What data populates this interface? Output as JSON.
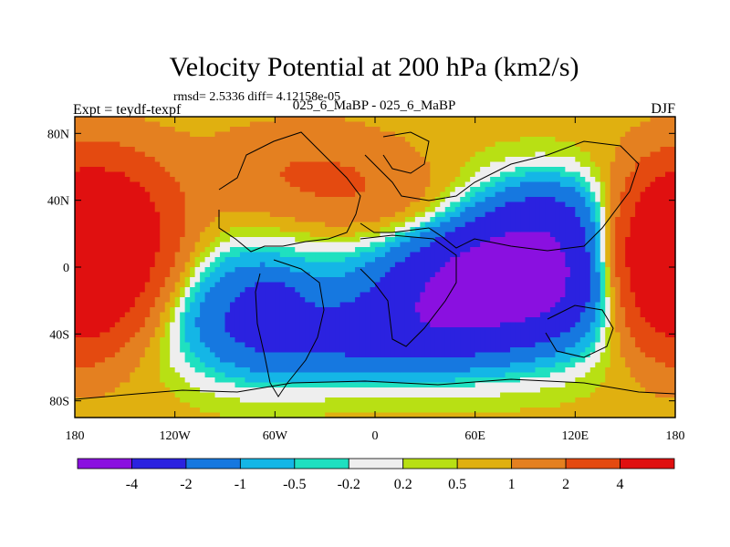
{
  "chart_data": {
    "type": "heatmap",
    "title": "Velocity Potential at 200 hPa (km2/s)",
    "stats_line": "rmsd= 2.5336 diff= 4.12158e-05",
    "left_label": "Expt = teydf-texpf",
    "center_label": "025_6_MaBP - 025_6_MaBP",
    "right_label": "DJF",
    "units": "km2/s",
    "xlim": [
      -180,
      180
    ],
    "ylim": [
      -90,
      90
    ],
    "x_ticks": [
      {
        "value": -180,
        "label": "180"
      },
      {
        "value": -120,
        "label": "120W"
      },
      {
        "value": -60,
        "label": "60W"
      },
      {
        "value": 0,
        "label": "0"
      },
      {
        "value": 60,
        "label": "60E"
      },
      {
        "value": 120,
        "label": "120E"
      },
      {
        "value": 180,
        "label": "180"
      }
    ],
    "y_ticks": [
      {
        "value": 80,
        "label": "80N"
      },
      {
        "value": 40,
        "label": "40N"
      },
      {
        "value": 0,
        "label": "0"
      },
      {
        "value": -40,
        "label": "40S"
      },
      {
        "value": -80,
        "label": "80S"
      }
    ],
    "colorbar": {
      "colors": [
        "#8a10e0",
        "#2b22e0",
        "#1678e0",
        "#14b6e6",
        "#1fe0c0",
        "#eeeeee",
        "#b8e014",
        "#e0b010",
        "#e48020",
        "#e44a10",
        "#e01010"
      ],
      "boundaries": [
        "-4",
        "-2",
        "-1",
        "-0.5",
        "-0.2",
        "0.2",
        "0.5",
        "1",
        "2",
        "4"
      ]
    },
    "field": {
      "description": "Approximate DJF 200 hPa velocity potential difference field (km2/s), estimated from filled contours",
      "background": 0.7,
      "centers": [
        {
          "lon": 85,
          "lat": -5,
          "amp": -6.2,
          "sx": 50,
          "sy": 30
        },
        {
          "lon": 30,
          "lat": -25,
          "amp": -1.4,
          "sx": 35,
          "sy": 22
        },
        {
          "lon": -75,
          "lat": -25,
          "amp": -2.6,
          "sx": 35,
          "sy": 28
        },
        {
          "lon": -62,
          "lat": -20,
          "amp": -1.5,
          "sx": 8,
          "sy": 8
        },
        {
          "lon": -10,
          "lat": -45,
          "amp": -2.0,
          "sx": 50,
          "sy": 18
        },
        {
          "lon": 110,
          "lat": 35,
          "amp": -1.2,
          "sx": 30,
          "sy": 18
        },
        {
          "lon": -165,
          "lat": 25,
          "amp": 5.2,
          "sx": 30,
          "sy": 28
        },
        {
          "lon": 180,
          "lat": 0,
          "amp": 5.8,
          "sx": 28,
          "sy": 30
        },
        {
          "lon": -180,
          "lat": -10,
          "amp": 2.5,
          "sx": 25,
          "sy": 30
        },
        {
          "lon": -40,
          "lat": 55,
          "amp": 1.4,
          "sx": 40,
          "sy": 20
        },
        {
          "lon": 20,
          "lat": 35,
          "amp": 1.1,
          "sx": 35,
          "sy": 18
        }
      ]
    }
  }
}
